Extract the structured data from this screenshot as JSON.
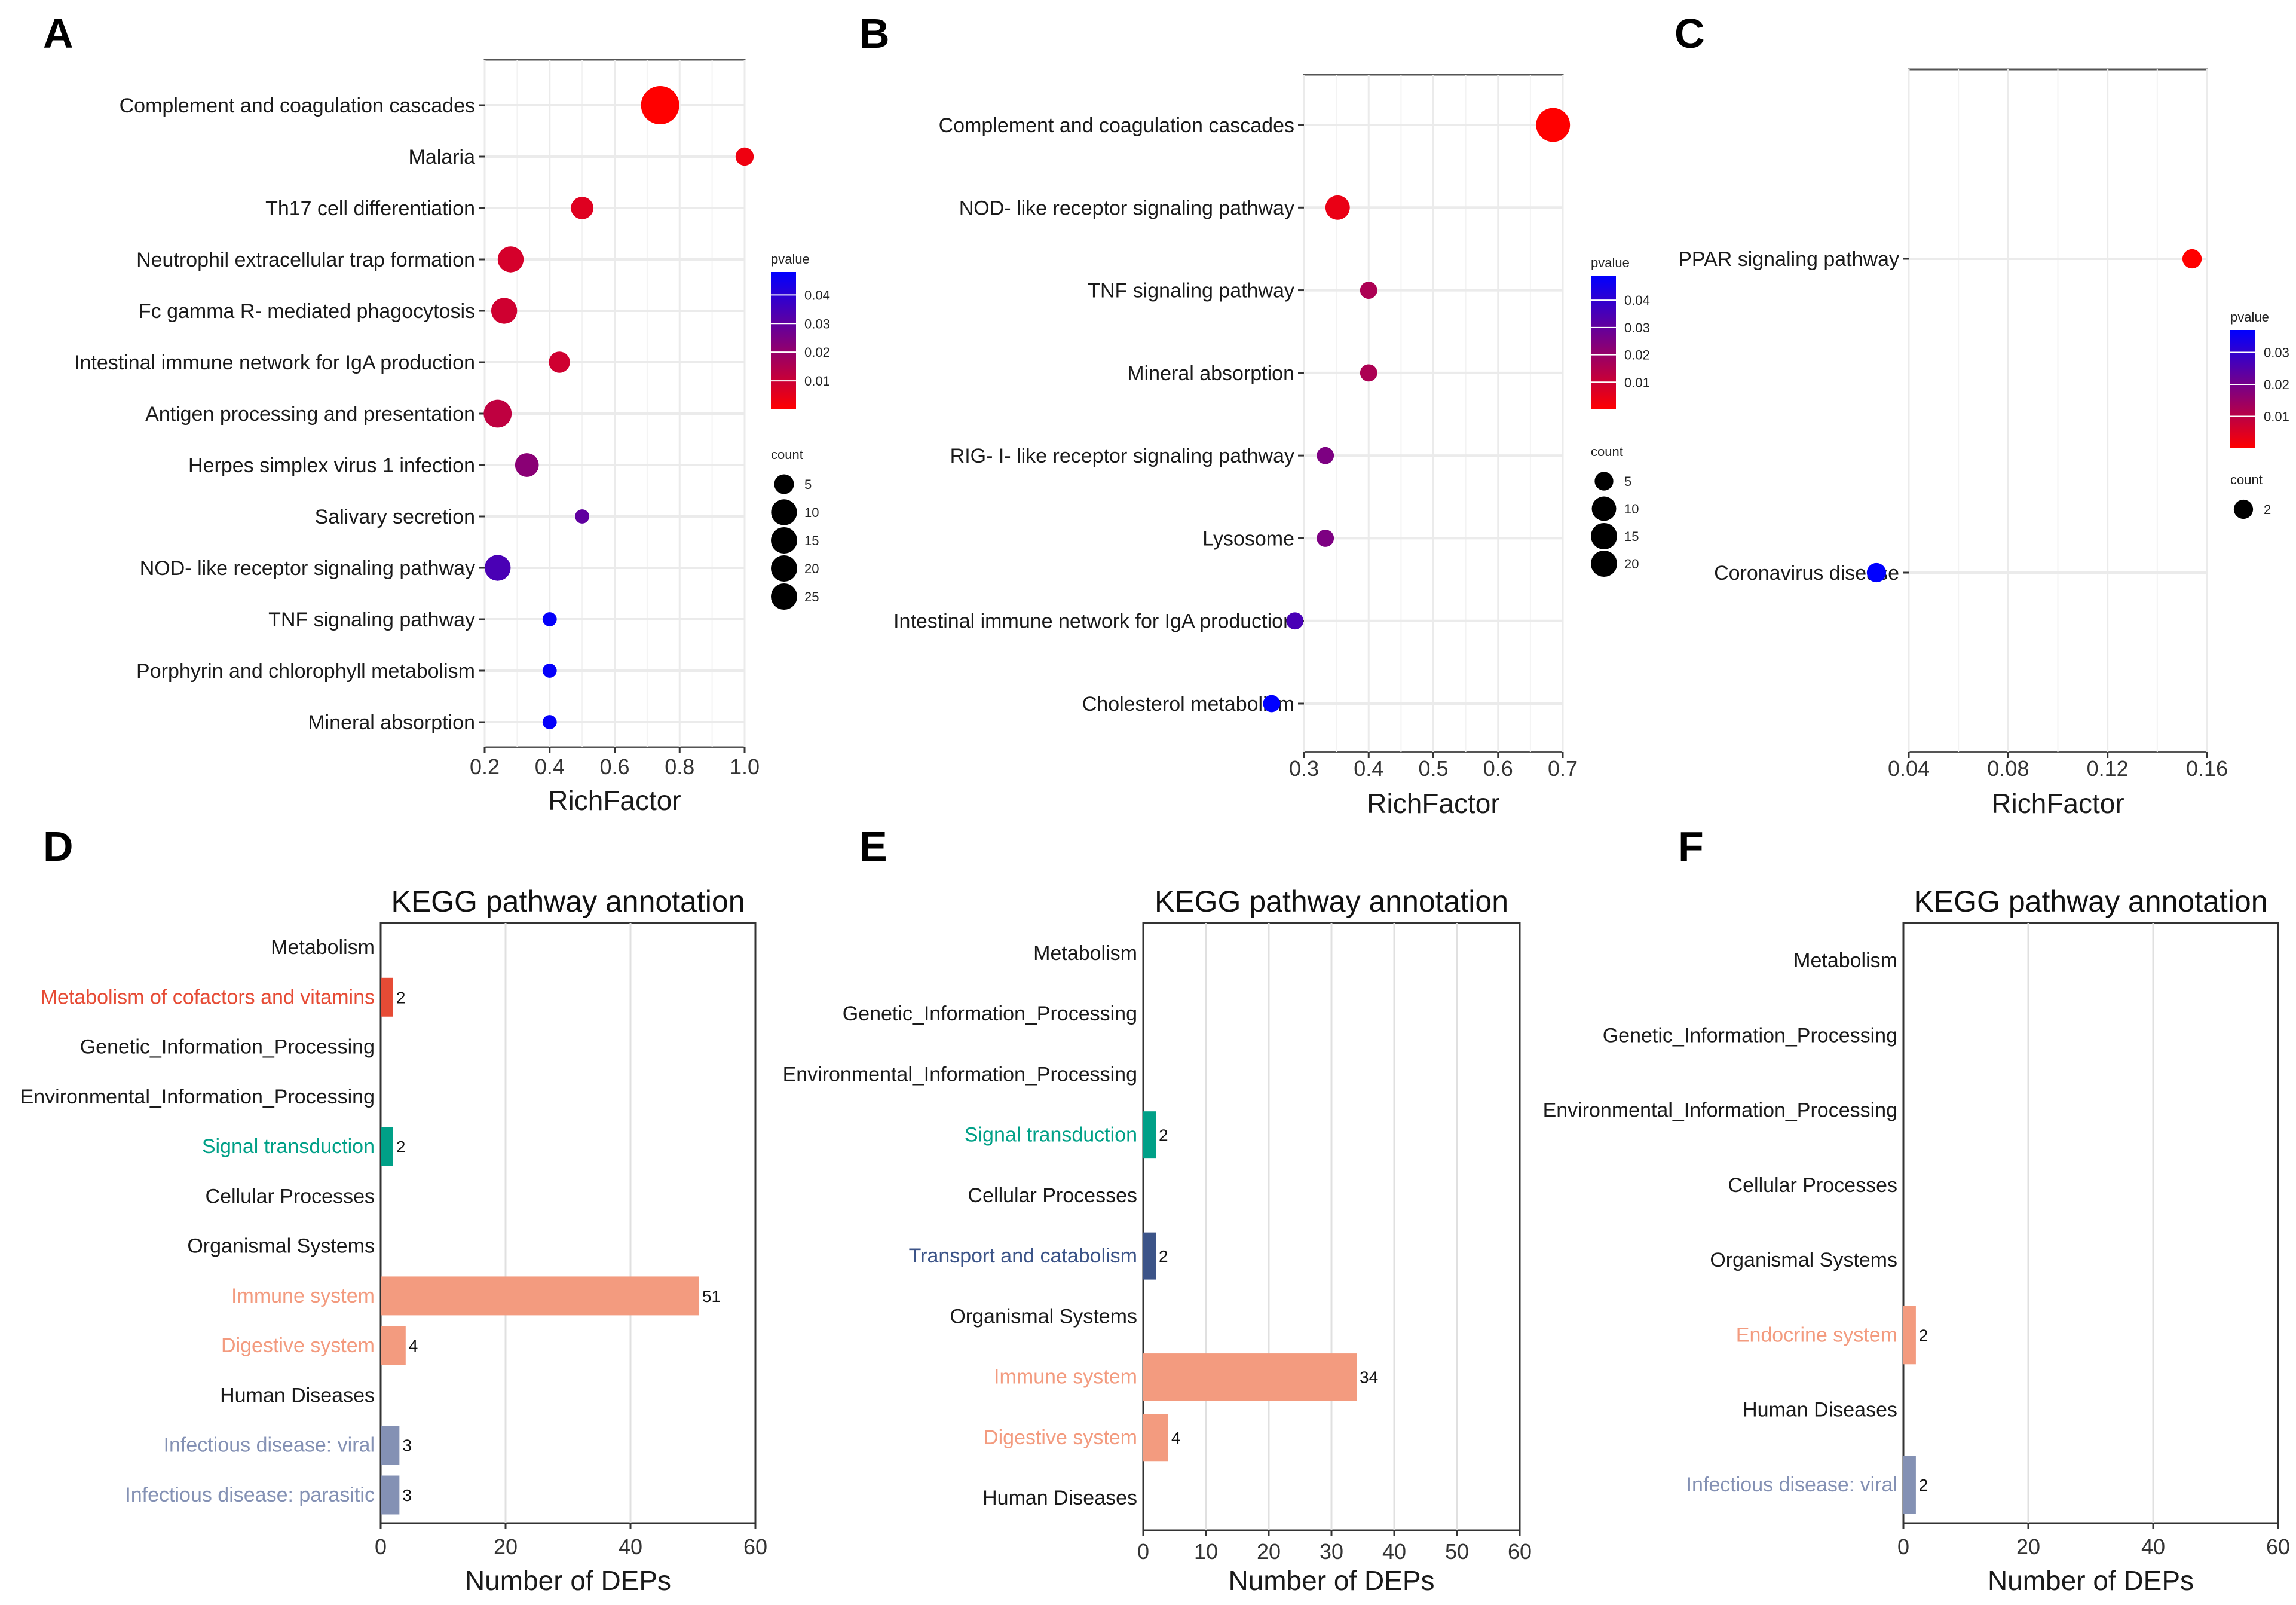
{
  "panels": {
    "A": "A",
    "B": "B",
    "C": "C",
    "D": "D",
    "E": "E",
    "F": "F"
  },
  "chart_data": [
    {
      "type": "scatter",
      "panel": "A",
      "xlabel": "RichFactor",
      "xticks": [
        "0.2",
        "0.4",
        "0.6",
        "0.8",
        "1.0"
      ],
      "xlim": [
        0.2,
        1.0
      ],
      "legend_pvalue_title": "pvalue",
      "legend_pvalue_ticks": [
        "0.04",
        "0.03",
        "0.02",
        "0.01"
      ],
      "pvalue_range": [
        0.0,
        0.048
      ],
      "legend_count_title": "count",
      "legend_count_values": [
        "5",
        "10",
        "15",
        "20",
        "25"
      ],
      "categories": [
        "Complement and coagulation cascades",
        "Malaria",
        "Th17 cell differentiation",
        "Neutrophil extracellular trap formation",
        "Fc gamma R- mediated phagocytosis",
        "Intestinal immune network for IgA production",
        "Antigen processing and presentation",
        "Herpes simplex virus 1 infection",
        "Salivary secretion",
        "NOD- like receptor signaling pathway",
        "TNF signaling pathway",
        "Porphyrin and chlorophyll metabolism",
        "Mineral absorption"
      ],
      "richfactor": [
        0.74,
        1.0,
        0.5,
        0.28,
        0.26,
        0.43,
        0.24,
        0.33,
        0.5,
        0.24,
        0.4,
        0.4,
        0.4
      ],
      "pvalue": [
        0.0,
        0.003,
        0.006,
        0.008,
        0.009,
        0.009,
        0.012,
        0.022,
        0.03,
        0.034,
        0.047,
        0.047,
        0.047
      ],
      "count": [
        25,
        4,
        7,
        10,
        10,
        6,
        12,
        8,
        2,
        10,
        2,
        2,
        2
      ]
    },
    {
      "type": "scatter",
      "panel": "B",
      "xlabel": "RichFactor",
      "xticks": [
        "0.3",
        "0.4",
        "0.5",
        "0.6",
        "0.7"
      ],
      "xlim": [
        0.3,
        0.7
      ],
      "legend_pvalue_title": "pvalue",
      "legend_pvalue_ticks": [
        "0.04",
        "0.03",
        "0.02",
        "0.01"
      ],
      "pvalue_range": [
        0.0,
        0.049
      ],
      "legend_count_title": "count",
      "legend_count_values": [
        "5",
        "10",
        "15",
        "20"
      ],
      "categories": [
        "Complement and coagulation cascades",
        "NOD- like receptor signaling pathway",
        "TNF signaling pathway",
        "Mineral absorption",
        "RIG- I- like receptor signaling pathway",
        "Lysosome",
        "Intestinal immune network for IgA production",
        "Cholesterol metabolism"
      ],
      "richfactor": [
        0.685,
        0.352,
        0.4,
        0.4,
        0.333,
        0.333,
        0.286,
        0.25
      ],
      "pvalue": [
        0.0,
        0.004,
        0.016,
        0.016,
        0.025,
        0.025,
        0.035,
        0.049
      ],
      "count": [
        22,
        10,
        4,
        4,
        4,
        4,
        4,
        4
      ]
    },
    {
      "type": "scatter",
      "panel": "C",
      "xlabel": "RichFactor",
      "xticks": [
        "0.04",
        "0.08",
        "0.12",
        "0.16"
      ],
      "xlim": [
        0.04,
        0.16
      ],
      "legend_pvalue_title": "pvalue",
      "legend_pvalue_ticks": [
        "0.03",
        "0.02",
        "0.01"
      ],
      "pvalue_range": [
        0.0,
        0.037
      ],
      "legend_count_title": "count",
      "legend_count_values": [
        "2"
      ],
      "categories": [
        "PPAR signaling pathway",
        "Coronavirus disease"
      ],
      "richfactor": [
        0.154,
        0.027
      ],
      "pvalue": [
        0.0,
        0.037
      ],
      "count": [
        2,
        2
      ]
    },
    {
      "type": "bar",
      "panel": "D",
      "title": "KEGG pathway annotation",
      "xlabel": "Number of DEPs",
      "xticks": [
        "0",
        "20",
        "40",
        "60"
      ],
      "xlim": [
        0,
        60
      ],
      "categories": [
        "Metabolism",
        "Metabolism of cofactors and vitamins",
        "Genetic_Information_Processing",
        "Environmental_Information_Processing",
        "Signal transduction",
        "Cellular Processes",
        "Organismal Systems",
        "Immune system",
        "Digestive system",
        "Human Diseases",
        "Infectious disease: viral",
        "Infectious disease: parasitic"
      ],
      "values": [
        null,
        2,
        null,
        null,
        2,
        null,
        null,
        51,
        4,
        null,
        3,
        3
      ],
      "value_labels": [
        "",
        "2",
        "",
        "",
        "2",
        "",
        "",
        "51",
        "4",
        "",
        "3",
        "3"
      ],
      "colors": [
        "#1a1a1a",
        "#E64B35",
        "#1a1a1a",
        "#1a1a1a",
        "#00A087",
        "#1a1a1a",
        "#1a1a1a",
        "#F39B7F",
        "#F39B7F",
        "#1a1a1a",
        "#8491B4",
        "#8491B4"
      ]
    },
    {
      "type": "bar",
      "panel": "E",
      "title": "KEGG pathway annotation",
      "xlabel": "Number of DEPs",
      "xticks": [
        "0",
        "10",
        "20",
        "30",
        "40",
        "50",
        "60"
      ],
      "xlim": [
        0,
        60
      ],
      "categories": [
        "Metabolism",
        "Genetic_Information_Processing",
        "Environmental_Information_Processing",
        "Signal transduction",
        "Cellular Processes",
        "Transport and catabolism",
        "Organismal Systems",
        "Immune system",
        "Digestive system",
        "Human Diseases"
      ],
      "values": [
        null,
        null,
        null,
        2,
        null,
        2,
        null,
        34,
        4,
        null
      ],
      "value_labels": [
        "",
        "",
        "",
        "2",
        "",
        "2",
        "",
        "34",
        "4",
        ""
      ],
      "colors": [
        "#1a1a1a",
        "#1a1a1a",
        "#1a1a1a",
        "#00A087",
        "#1a1a1a",
        "#3C5488",
        "#1a1a1a",
        "#F39B7F",
        "#F39B7F",
        "#1a1a1a"
      ]
    },
    {
      "type": "bar",
      "panel": "F",
      "title": "KEGG pathway annotation",
      "xlabel": "Number of DEPs",
      "xticks": [
        "0",
        "20",
        "40",
        "60"
      ],
      "xlim": [
        0,
        60
      ],
      "categories": [
        "Metabolism",
        "Genetic_Information_Processing",
        "Environmental_Information_Processing",
        "Cellular Processes",
        "Organismal Systems",
        "Endocrine system",
        "Human Diseases",
        "Infectious disease: viral"
      ],
      "values": [
        null,
        null,
        null,
        null,
        null,
        2,
        null,
        2
      ],
      "value_labels": [
        "",
        "",
        "",
        "",
        "",
        "2",
        "",
        "2"
      ],
      "colors": [
        "#1a1a1a",
        "#1a1a1a",
        "#1a1a1a",
        "#1a1a1a",
        "#1a1a1a",
        "#F39B7F",
        "#1a1a1a",
        "#8491B4"
      ]
    }
  ]
}
